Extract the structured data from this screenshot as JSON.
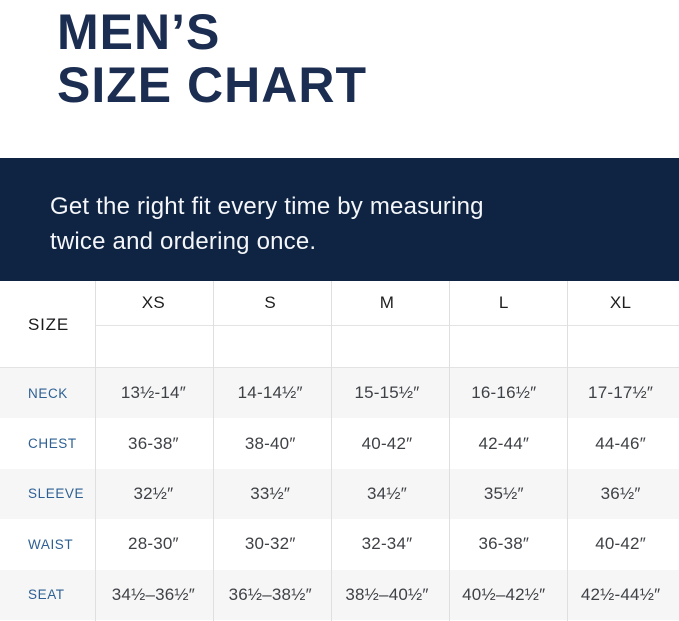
{
  "title": {
    "line1": "MEN’S",
    "line2": "SIZE CHART"
  },
  "banner": {
    "line1": "Get the right fit every time by measuring",
    "line2": "twice and ordering once."
  },
  "table": {
    "corner_label": "SIZE",
    "columns": [
      "XS",
      "S",
      "M",
      "L",
      "XL"
    ],
    "rows": [
      {
        "label": "NECK",
        "values": [
          "13½-14″",
          "14-14½″",
          "15-15½″",
          "16-16½″",
          "17-17½″"
        ]
      },
      {
        "label": "CHEST",
        "values": [
          "36-38″",
          "38-40″",
          "40-42″",
          "42-44″",
          "44-46″"
        ]
      },
      {
        "label": "SLEEVE",
        "values": [
          "32½″",
          "33½″",
          "34½″",
          "35½″",
          "36½″"
        ]
      },
      {
        "label": "WAIST",
        "values": [
          "28-30″",
          "30-32″",
          "32-34″",
          "36-38″",
          "40-42″"
        ]
      },
      {
        "label": "SEAT",
        "values": [
          "34½–36½″",
          "36½–38½″",
          "38½–40½″",
          "40½–42½″",
          "42½-44½″"
        ]
      }
    ]
  },
  "colors": {
    "title_navy": "#1c2d52",
    "banner_background": "#0f2443",
    "banner_text": "#f4f6f9",
    "row_label_blue": "#2e6093",
    "value_text": "#3e4145",
    "alt_row_background": "#f6f6f7",
    "grid_line": "#dfdfdf"
  }
}
